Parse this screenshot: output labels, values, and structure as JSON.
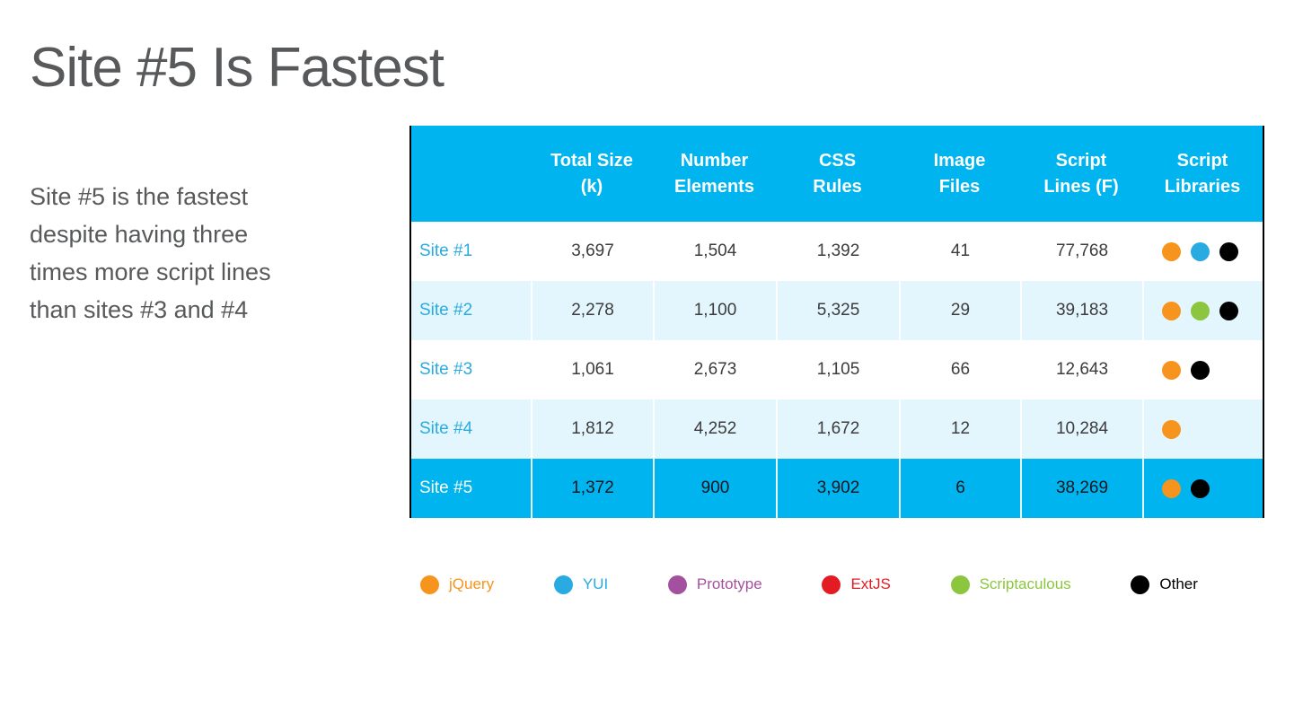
{
  "slide": {
    "title": "Site #5 Is Fastest",
    "body_text": "Site #5 is the fastest despite having three times more script lines than sites #3 and #4"
  },
  "colors": {
    "header_cyan": "#00B4F0",
    "alt_row_blue": "#E3F5FD",
    "site_link_blue": "#29ABE2",
    "text_gray": "#58595B"
  },
  "chart_data": {
    "type": "table",
    "title": "Site #5 Is Fastest",
    "columns": [
      "",
      "Total Size\n(k)",
      "Number\nElements",
      "CSS\nRules",
      "Image\nFiles",
      "Script\nLines (F)",
      "Script\nLibraries"
    ],
    "rows": [
      {
        "site": "Site #1",
        "total_size_k": "3,697",
        "number_elements": "1,504",
        "css_rules": "1,392",
        "image_files": "41",
        "script_lines_f": "77,768",
        "script_libraries": [
          "jquery",
          "yui",
          "other"
        ],
        "highlighted": false
      },
      {
        "site": "Site #2",
        "total_size_k": "2,278",
        "number_elements": "1,100",
        "css_rules": "5,325",
        "image_files": "29",
        "script_lines_f": "39,183",
        "script_libraries": [
          "jquery",
          "scriptaculous",
          "other"
        ],
        "highlighted": false
      },
      {
        "site": "Site #3",
        "total_size_k": "1,061",
        "number_elements": "2,673",
        "css_rules": "1,105",
        "image_files": "66",
        "script_lines_f": "12,643",
        "script_libraries": [
          "jquery",
          "other"
        ],
        "highlighted": false
      },
      {
        "site": "Site #4",
        "total_size_k": "1,812",
        "number_elements": "4,252",
        "css_rules": "1,672",
        "image_files": "12",
        "script_lines_f": "10,284",
        "script_libraries": [
          "jquery"
        ],
        "highlighted": false
      },
      {
        "site": "Site #5",
        "total_size_k": "1,372",
        "number_elements": "900",
        "css_rules": "3,902",
        "image_files": "6",
        "script_lines_f": "38,269",
        "script_libraries": [
          "jquery",
          "other"
        ],
        "highlighted": true
      }
    ],
    "legend_position": "bottom",
    "highlight_row": "Site #5"
  },
  "legend": [
    {
      "key": "jquery",
      "label": "jQuery",
      "color": "#F7941E"
    },
    {
      "key": "yui",
      "label": "YUI",
      "color": "#29ABE2"
    },
    {
      "key": "prototype",
      "label": "Prototype",
      "color": "#A3519E"
    },
    {
      "key": "extjs",
      "label": "ExtJS",
      "color": "#E31B23"
    },
    {
      "key": "scriptaculous",
      "label": "Scriptaculous",
      "color": "#8CC63E"
    },
    {
      "key": "other",
      "label": "Other",
      "color": "#000000"
    }
  ]
}
